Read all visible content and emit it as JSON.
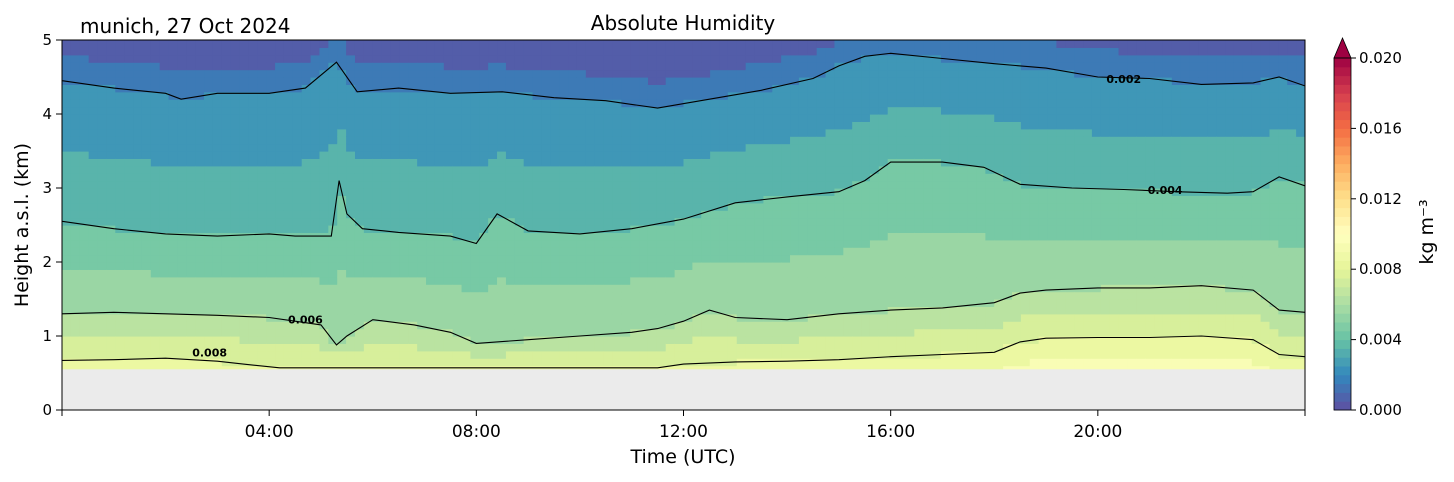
{
  "chart_data": {
    "type": "heatmap",
    "title": "Absolute Humidity",
    "subtitle": "munich, 27 Oct 2024",
    "xlabel": "Time (UTC)",
    "ylabel": "Height a.s.l. (km)",
    "x_unit": "hours UTC",
    "xlim": [
      0,
      24
    ],
    "ylim": [
      0,
      5
    ],
    "x_ticks": [
      4,
      8,
      12,
      16,
      20
    ],
    "x_tick_labels": [
      "04:00",
      "08:00",
      "12:00",
      "16:00",
      "20:00"
    ],
    "y_ticks": [
      0,
      1,
      2,
      3,
      4,
      5
    ],
    "y_tick_labels": [
      "0",
      "1",
      "2",
      "3",
      "4",
      "5"
    ],
    "no_data_below_km": 0.55,
    "colorbar": {
      "label": "kg m⁻³",
      "min": 0.0,
      "max": 0.02,
      "extend": "max",
      "ticks": [
        0.0,
        0.004,
        0.008,
        0.012,
        0.016,
        0.02
      ],
      "tick_labels": [
        "0.000",
        "0.004",
        "0.008",
        "0.012",
        "0.016",
        "0.020"
      ],
      "colormap": "Spectral_r",
      "colormap_stops": [
        "#5e4fa2",
        "#3288bd",
        "#66c2a5",
        "#abdda4",
        "#e6f598",
        "#ffffbf",
        "#fee08b",
        "#fdae61",
        "#f46d43",
        "#d53e4f",
        "#9e0142"
      ]
    },
    "contours": [
      {
        "level": 0.002,
        "label": "0.002",
        "label_at": [
          20.5,
          4.47
        ],
        "x": [
          0,
          1,
          2,
          2.3,
          3,
          4,
          4.7,
          5.3,
          5.7,
          6.5,
          7.5,
          8.5,
          9.5,
          10.5,
          11.5,
          12.5,
          13.5,
          14.5,
          15,
          15.5,
          16,
          17,
          18,
          19,
          20,
          21,
          22,
          23,
          23.5,
          24
        ],
        "y": [
          4.45,
          4.35,
          4.28,
          4.2,
          4.28,
          4.28,
          4.35,
          4.7,
          4.3,
          4.35,
          4.28,
          4.3,
          4.22,
          4.18,
          4.08,
          4.2,
          4.32,
          4.48,
          4.65,
          4.78,
          4.82,
          4.75,
          4.68,
          4.62,
          4.5,
          4.48,
          4.4,
          4.42,
          4.5,
          4.38
        ]
      },
      {
        "level": 0.004,
        "label": "0.004",
        "label_at": [
          21.3,
          2.97
        ],
        "x": [
          0,
          1,
          2,
          3,
          4,
          4.5,
          5.2,
          5.35,
          5.5,
          5.8,
          6.5,
          7.5,
          8,
          8.4,
          9,
          10,
          11,
          12,
          13,
          14,
          15,
          15.5,
          16,
          17,
          17.8,
          18.5,
          19.5,
          20.5,
          21.5,
          22.5,
          23,
          23.5,
          24
        ],
        "y": [
          2.55,
          2.45,
          2.38,
          2.35,
          2.38,
          2.35,
          2.35,
          3.1,
          2.65,
          2.45,
          2.4,
          2.35,
          2.25,
          2.65,
          2.42,
          2.38,
          2.45,
          2.58,
          2.8,
          2.88,
          2.95,
          3.1,
          3.35,
          3.35,
          3.28,
          3.05,
          3.0,
          2.98,
          2.95,
          2.93,
          2.95,
          3.15,
          3.03
        ]
      },
      {
        "level": 0.006,
        "label": "0.006",
        "label_at": [
          4.7,
          1.22
        ],
        "x": [
          0,
          1,
          2,
          3,
          4,
          4.5,
          5,
          5.3,
          5.5,
          6,
          6.8,
          7.5,
          8,
          9,
          10,
          11,
          11.5,
          12,
          12.5,
          13,
          14,
          15,
          16,
          17,
          18,
          18.5,
          19,
          20,
          21,
          22,
          23,
          23.5,
          24
        ],
        "y": [
          1.3,
          1.32,
          1.3,
          1.28,
          1.25,
          1.2,
          1.15,
          0.88,
          1.0,
          1.22,
          1.15,
          1.05,
          0.9,
          0.95,
          1.0,
          1.05,
          1.1,
          1.2,
          1.35,
          1.25,
          1.22,
          1.3,
          1.35,
          1.38,
          1.45,
          1.58,
          1.62,
          1.65,
          1.65,
          1.68,
          1.62,
          1.35,
          1.32
        ]
      },
      {
        "level": 0.008,
        "label": "0.008",
        "label_at": [
          2.85,
          0.78
        ],
        "x": [
          0,
          1,
          2,
          3,
          3.5,
          4.2,
          5.3,
          6,
          7,
          8,
          9,
          10,
          11,
          11.5,
          12,
          13,
          14,
          15,
          16,
          17,
          18,
          18.5,
          19,
          20,
          21,
          22,
          23,
          23.5,
          24
        ],
        "y": [
          0.67,
          0.68,
          0.7,
          0.66,
          0.62,
          0.57,
          0.57,
          0.57,
          0.57,
          0.57,
          0.57,
          0.57,
          0.57,
          0.57,
          0.62,
          0.65,
          0.66,
          0.68,
          0.72,
          0.75,
          0.78,
          0.92,
          0.97,
          0.98,
          0.98,
          1.0,
          0.95,
          0.75,
          0.72
        ]
      }
    ]
  }
}
